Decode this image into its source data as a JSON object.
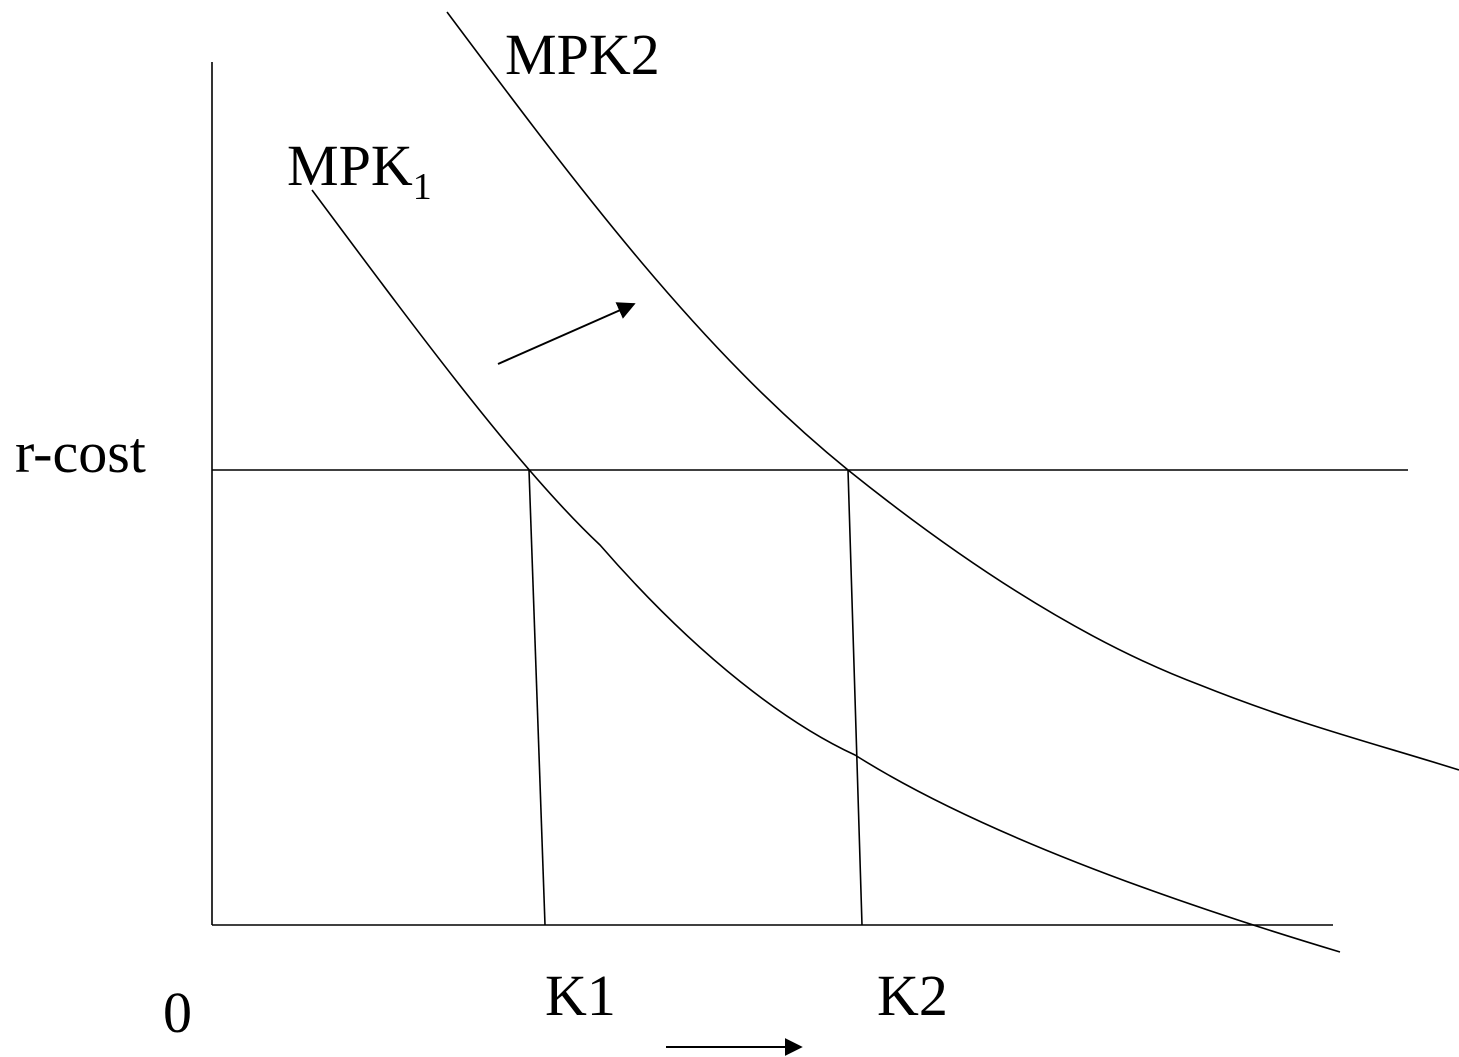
{
  "labels": {
    "mpk2": "MPK2",
    "mpk1_main": "MPK",
    "mpk1_sub": "1",
    "rcost": "r-cost",
    "k1": "K1",
    "k2": "K2",
    "origin": "0"
  },
  "colors": {
    "stroke": "#000000",
    "background": "#ffffff"
  }
}
